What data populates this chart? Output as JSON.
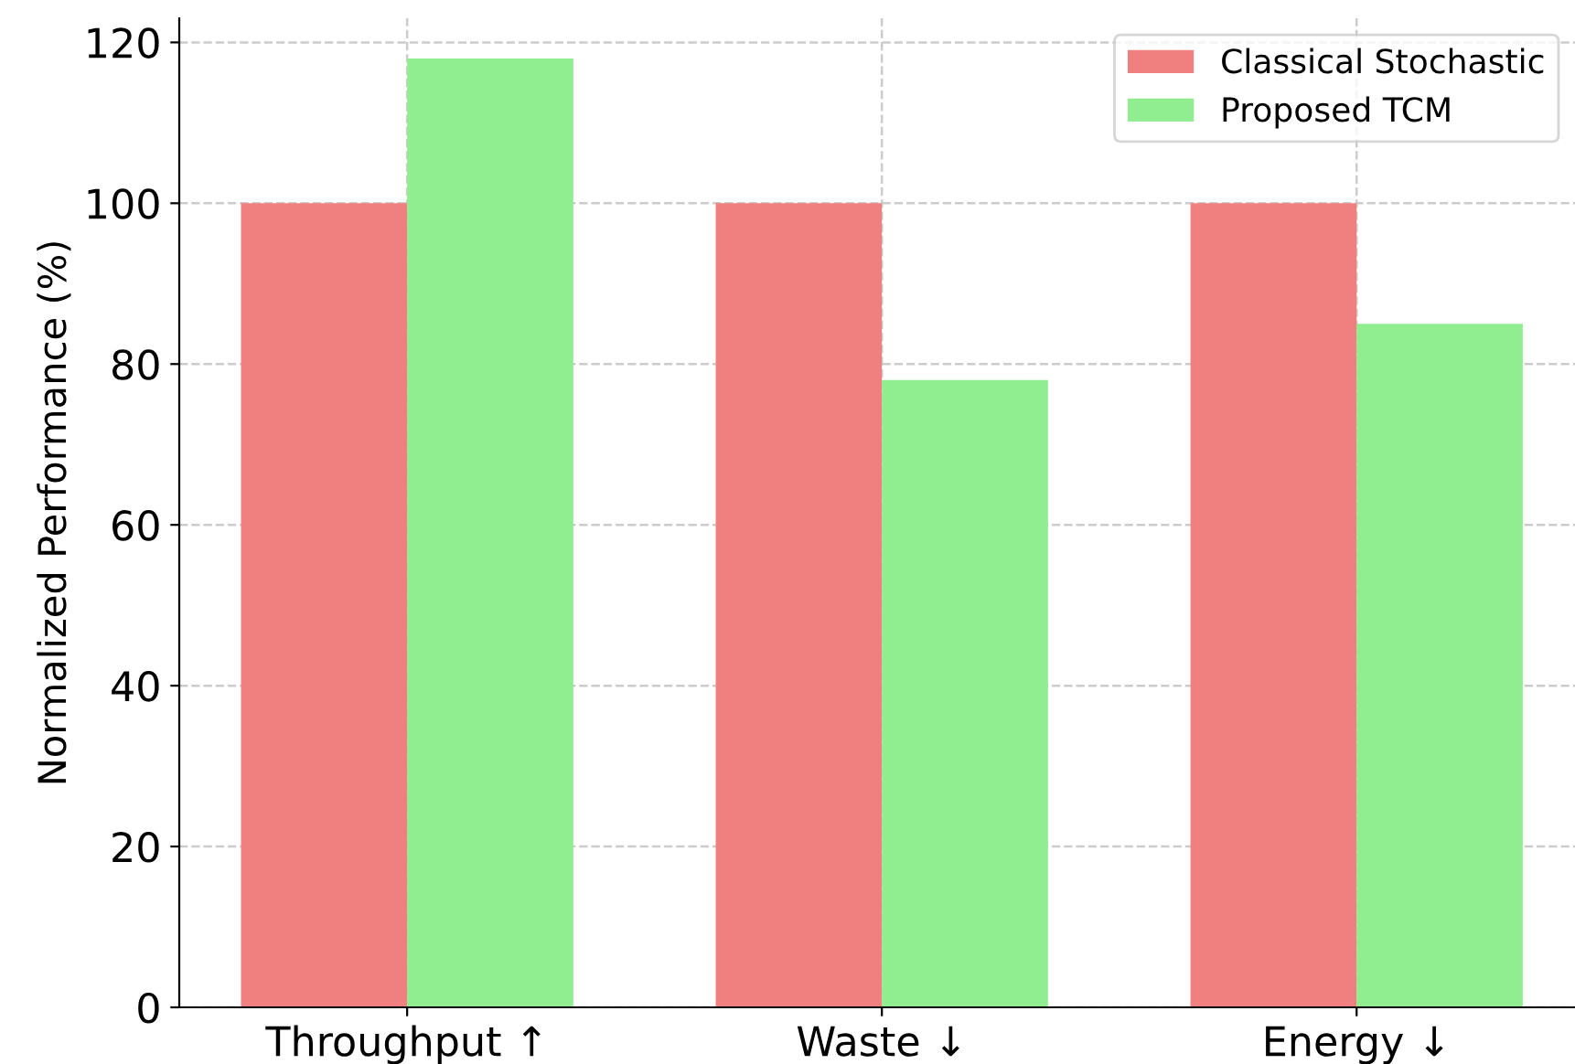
{
  "chart_data": {
    "type": "bar",
    "categories": [
      "Throughput ↑",
      "Waste ↓",
      "Energy ↓"
    ],
    "ylabel": "Normalized Performance (%)",
    "series": [
      {
        "name": "Classical Stochastic",
        "color": "#f08080",
        "values": [
          100,
          100,
          100
        ]
      },
      {
        "name": "Proposed TCM",
        "color": "#90ee90",
        "values": [
          118,
          78,
          85
        ]
      }
    ],
    "ylim": [
      0,
      123
    ],
    "yticks": [
      0,
      20,
      40,
      60,
      80,
      100,
      120
    ],
    "grid": true,
    "legend": "top right"
  }
}
